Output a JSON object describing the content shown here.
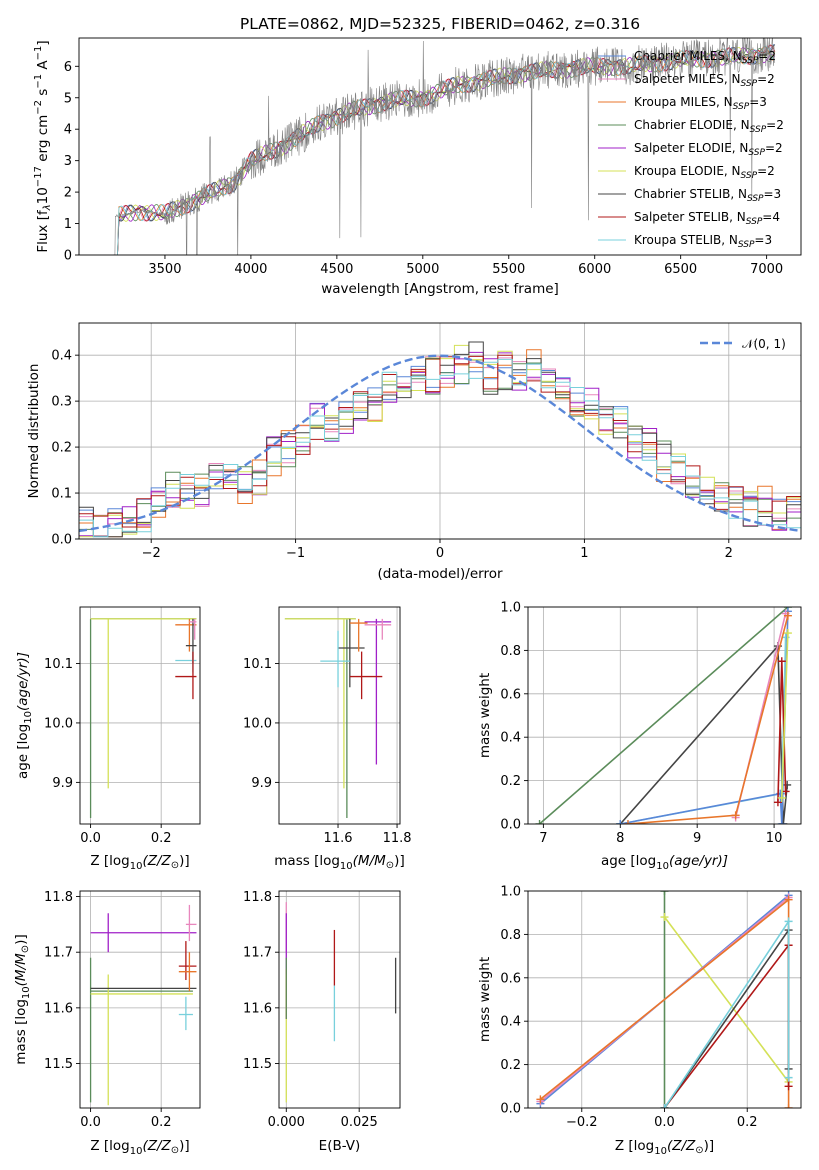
{
  "title": "PLATE=0862, MJD=52325, FIBERID=0462, z=0.316",
  "colors": {
    "chabrier_miles": "#5a87d8",
    "salpeter_miles": "#e887bd",
    "kroupa_miles": "#e8762b",
    "chabrier_elodie": "#5b8c5a",
    "salpeter_elodie": "#a020c8",
    "kroupa_elodie": "#d4e157",
    "chabrier_stelib": "#444444",
    "salpeter_stelib": "#b01818",
    "kroupa_stelib": "#78d0dc",
    "data": "#808080",
    "grid": "#b0b0b0"
  },
  "chart_data": [
    {
      "id": "spectrum",
      "type": "line",
      "xlabel": "wavelength [Angstrom, rest frame]",
      "ylabel": "Flux [f_λ 10^-17 erg cm^-2 s^-1 A^-1]",
      "ylabel_main": "Flux [f",
      "ylabel_sub": "λ",
      "ylabel_exp_a": "10",
      "ylabel_exp_b": "−17",
      "ylabel_rest_a": " erg cm",
      "ylabel_rest_b": "−2",
      "ylabel_rest_c": " s",
      "ylabel_rest_d": "−1",
      "ylabel_rest_e": " A",
      "ylabel_rest_f": "−1",
      "ylabel_close": "]",
      "xlim": [
        3000,
        7200
      ],
      "ylim": [
        0,
        6.9
      ],
      "xticks": [
        3500,
        4000,
        4500,
        5000,
        5500,
        6000,
        6500,
        7000
      ],
      "yticks": [
        0,
        1,
        2,
        3,
        4,
        5,
        6
      ],
      "grid": false,
      "legend_position": "top-right",
      "continuum": [
        [
          3200,
          1.2
        ],
        [
          3350,
          1.4
        ],
        [
          3500,
          1.3
        ],
        [
          3700,
          1.8
        ],
        [
          3900,
          2.3
        ],
        [
          4000,
          3.0
        ],
        [
          4200,
          3.5
        ],
        [
          4400,
          4.2
        ],
        [
          4600,
          4.6
        ],
        [
          4800,
          4.9
        ],
        [
          5000,
          5.0
        ],
        [
          5200,
          5.4
        ],
        [
          5400,
          5.6
        ],
        [
          5600,
          5.8
        ],
        [
          5800,
          5.9
        ],
        [
          6000,
          6.0
        ],
        [
          6200,
          6.0
        ],
        [
          6500,
          6.2
        ],
        [
          6800,
          6.3
        ],
        [
          7000,
          6.4
        ]
      ],
      "legend": [
        {
          "name_main": "Chabrier MILES, N",
          "name_sub": "SSP",
          "name_val": "=2",
          "color_key": "chabrier_miles"
        },
        {
          "name_main": "Salpeter MILES, N",
          "name_sub": "SSP",
          "name_val": "=2",
          "color_key": "salpeter_miles"
        },
        {
          "name_main": "Kroupa MILES, N",
          "name_sub": "SSP",
          "name_val": "=3",
          "color_key": "kroupa_miles"
        },
        {
          "name_main": "Chabrier ELODIE, N",
          "name_sub": "SSP",
          "name_val": "=2",
          "color_key": "chabrier_elodie"
        },
        {
          "name_main": "Salpeter ELODIE, N",
          "name_sub": "SSP",
          "name_val": "=2",
          "color_key": "salpeter_elodie"
        },
        {
          "name_main": "Kroupa ELODIE, N",
          "name_sub": "SSP",
          "name_val": "=2",
          "color_key": "kroupa_elodie"
        },
        {
          "name_main": "Chabrier STELIB, N",
          "name_sub": "SSP",
          "name_val": "=3",
          "color_key": "chabrier_stelib"
        },
        {
          "name_main": "Salpeter STELIB, N",
          "name_sub": "SSP",
          "name_val": "=4",
          "color_key": "salpeter_stelib"
        },
        {
          "name_main": "Kroupa STELIB, N",
          "name_sub": "SSP",
          "name_val": "=3",
          "color_key": "kroupa_stelib"
        }
      ]
    },
    {
      "id": "residuals",
      "type": "histogram",
      "xlabel": "(data-model)/error",
      "ylabel": "Normed distribution",
      "xlim": [
        -2.5,
        2.5
      ],
      "ylim": [
        0,
        0.47
      ],
      "xticks": [
        -2,
        -1,
        0,
        1,
        2
      ],
      "xticklabels": [
        "−2",
        "−1",
        "0",
        "1",
        "2"
      ],
      "yticks": [
        0.0,
        0.1,
        0.2,
        0.3,
        0.4
      ],
      "yticklabels": [
        "0.0",
        "0.1",
        "0.2",
        "0.3",
        "0.4"
      ],
      "grid": true,
      "bin_edges_range": [
        -2.5,
        2.5
      ],
      "bin_count": 50,
      "mean_profile": [
        0.03,
        0.03,
        0.035,
        0.04,
        0.06,
        0.09,
        0.11,
        0.1,
        0.11,
        0.13,
        0.14,
        0.12,
        0.13,
        0.18,
        0.2,
        0.22,
        0.26,
        0.25,
        0.27,
        0.29,
        0.3,
        0.32,
        0.33,
        0.34,
        0.36,
        0.37,
        0.38,
        0.39,
        0.36,
        0.37,
        0.35,
        0.37,
        0.33,
        0.31,
        0.3,
        0.3,
        0.27,
        0.25,
        0.22,
        0.2,
        0.17,
        0.15,
        0.13,
        0.12,
        0.1,
        0.09,
        0.07,
        0.07,
        0.06,
        0.05
      ],
      "gaussian_label_main": "𝒩(0, 1)",
      "gaussian_color": "#5a87d8",
      "legend_position": "top-right"
    },
    {
      "id": "age-vs-Z",
      "type": "errorbar",
      "xlabel_main": "Z [log",
      "xlabel_sub": "10",
      "xlabel_rest": "(Z/Z",
      "xlabel_sun": "⊙",
      "xlabel_close": ")]",
      "ylabel_main": "age  [log",
      "ylabel_sub": "10",
      "ylabel_rest": "(age/yr)]",
      "xlim": [
        -0.03,
        0.31
      ],
      "ylim": [
        9.83,
        10.195
      ],
      "xticks": [
        0.0,
        0.2
      ],
      "xticklabels": [
        "0.0",
        "0.2"
      ],
      "yticks": [
        9.9,
        10.0,
        10.1
      ],
      "yticklabels": [
        "9.9",
        "10.0",
        "10.1"
      ],
      "grid": true,
      "points": [
        {
          "x": 0.0,
          "y": 10.175,
          "xl": 0.0,
          "xh": 0.3,
          "yl": 9.84,
          "yh": 10.175,
          "color_key": "chabrier_elodie"
        },
        {
          "x": 0.05,
          "y": 10.175,
          "xl": 0.0,
          "xh": 0.3,
          "yl": 9.89,
          "yh": 10.175,
          "color_key": "kroupa_elodie"
        },
        {
          "x": 0.28,
          "y": 10.165,
          "xl": 0.24,
          "xh": 0.3,
          "yl": 10.12,
          "yh": 10.175,
          "color_key": "kroupa_miles"
        },
        {
          "x": 0.29,
          "y": 10.13,
          "xl": 0.27,
          "xh": 0.3,
          "yl": 10.1,
          "yh": 10.175,
          "color_key": "chabrier_stelib"
        },
        {
          "x": 0.29,
          "y": 10.105,
          "xl": 0.24,
          "xh": 0.3,
          "yl": 10.085,
          "yh": 10.12,
          "color_key": "kroupa_stelib"
        },
        {
          "x": 0.29,
          "y": 10.078,
          "xl": 0.24,
          "xh": 0.3,
          "yl": 10.04,
          "yh": 10.12,
          "color_key": "salpeter_stelib"
        },
        {
          "x": 0.295,
          "y": 10.17,
          "xl": 0.28,
          "xh": 0.3,
          "yl": 10.14,
          "yh": 10.175,
          "color_key": "salpeter_miles"
        }
      ]
    },
    {
      "id": "age-vs-mass",
      "type": "errorbar",
      "xlabel_main": "mass [log",
      "xlabel_sub": "10",
      "xlabel_rest": "(M/M",
      "xlabel_sun": "⊙",
      "xlabel_close": ")]",
      "xlim": [
        11.4,
        11.81
      ],
      "ylim": [
        9.83,
        10.195
      ],
      "xticks": [
        11.6,
        11.8
      ],
      "xticklabels": [
        "11.6",
        "11.8"
      ],
      "yticks": [
        9.9,
        10.0,
        10.1
      ],
      "yticklabels": [
        "9.9",
        "10.0",
        "10.1"
      ],
      "grid": true,
      "points": [
        {
          "x": 11.63,
          "y": 10.175,
          "xl": 11.42,
          "xh": 11.66,
          "yl": 9.84,
          "yh": 10.175,
          "color_key": "chabrier_elodie"
        },
        {
          "x": 11.62,
          "y": 10.175,
          "xl": 11.42,
          "xh": 11.66,
          "yl": 9.89,
          "yh": 10.175,
          "color_key": "kroupa_elodie"
        },
        {
          "x": 11.73,
          "y": 10.17,
          "xl": 11.69,
          "xh": 11.78,
          "yl": 9.93,
          "yh": 10.175,
          "color_key": "salpeter_elodie"
        },
        {
          "x": 11.75,
          "y": 10.165,
          "xl": 11.69,
          "xh": 11.78,
          "yl": 10.14,
          "yh": 10.175,
          "color_key": "salpeter_miles"
        },
        {
          "x": 11.64,
          "y": 10.126,
          "xl": 11.6,
          "xh": 11.69,
          "yl": 10.06,
          "yh": 10.175,
          "color_key": "chabrier_stelib"
        },
        {
          "x": 11.68,
          "y": 10.078,
          "xl": 11.64,
          "xh": 11.75,
          "yl": 10.04,
          "yh": 10.12,
          "color_key": "salpeter_stelib"
        },
        {
          "x": 11.6,
          "y": 10.104,
          "xl": 11.54,
          "xh": 11.64,
          "yl": 10.06,
          "yh": 10.155,
          "color_key": "kroupa_stelib"
        },
        {
          "x": 11.67,
          "y": 10.168,
          "xl": 11.64,
          "xh": 11.7,
          "yl": 10.12,
          "yh": 10.175,
          "color_key": "kroupa_miles"
        }
      ]
    },
    {
      "id": "weight-vs-age",
      "type": "line",
      "xlabel_main": "age  [log",
      "xlabel_sub": "10",
      "xlabel_rest": "(age/yr)]",
      "ylabel": "mass weight",
      "xlim": [
        6.8,
        10.35
      ],
      "ylim": [
        0,
        1.0
      ],
      "xticks": [
        7,
        8,
        9,
        10
      ],
      "xticklabels": [
        "7",
        "8",
        "9",
        "10"
      ],
      "yticks": [
        0.0,
        0.2,
        0.4,
        0.6,
        0.8,
        1.0
      ],
      "yticklabels": [
        "0.0",
        "0.2",
        "0.4",
        "0.6",
        "0.8",
        "1.0"
      ],
      "grid": true,
      "series": [
        {
          "color_key": "chabrier_elodie",
          "points": [
            [
              6.95,
              0.0
            ],
            [
              10.18,
              1.0
            ]
          ]
        },
        {
          "color_key": "chabrier_stelib",
          "points": [
            [
              8.0,
              0.0
            ],
            [
              10.05,
              0.82
            ],
            [
              10.12,
              0.0
            ],
            [
              10.17,
              0.18
            ]
          ]
        },
        {
          "color_key": "kroupa_stelib",
          "points": [
            [
              8.0,
              0.0
            ],
            [
              10.1,
              0.14
            ],
            [
              10.15,
              0.86
            ]
          ]
        },
        {
          "color_key": "chabrier_miles",
          "points": [
            [
              8.0,
              0.0
            ],
            [
              10.08,
              0.14
            ],
            [
              10.1,
              0.0
            ],
            [
              10.18,
              0.98
            ]
          ]
        },
        {
          "color_key": "salpeter_stelib",
          "points": [
            [
              10.05,
              0.1
            ],
            [
              10.1,
              0.75
            ],
            [
              10.15,
              0.15
            ]
          ]
        },
        {
          "color_key": "kroupa_elodie",
          "points": [
            [
              10.1,
              0.12
            ],
            [
              10.18,
              0.88
            ]
          ]
        },
        {
          "color_key": "salpeter_miles",
          "points": [
            [
              9.5,
              0.03
            ],
            [
              10.15,
              0.97
            ]
          ]
        },
        {
          "color_key": "kroupa_miles",
          "points": [
            [
              8.1,
              0.0
            ],
            [
              9.5,
              0.04
            ],
            [
              10.18,
              0.96
            ]
          ]
        }
      ]
    },
    {
      "id": "mass-vs-Z",
      "type": "errorbar",
      "xlabel_main": "Z [log",
      "xlabel_sub": "10",
      "xlabel_rest": "(Z/Z",
      "xlabel_sun": "⊙",
      "xlabel_close": ")]",
      "ylabel_main": "mass [log",
      "ylabel_sub": "10",
      "ylabel_rest": "(M/M",
      "ylabel_sun": "⊙",
      "ylabel_close": ")]",
      "xlim": [
        -0.03,
        0.31
      ],
      "ylim": [
        11.42,
        11.81
      ],
      "xticks": [
        0.0,
        0.2
      ],
      "xticklabels": [
        "0.0",
        "0.2"
      ],
      "yticks": [
        11.5,
        11.6,
        11.7,
        11.8
      ],
      "yticklabels": [
        "11.5",
        "11.6",
        "11.7",
        "11.8"
      ],
      "grid": true,
      "points": [
        {
          "x": 0.0,
          "y": 11.63,
          "xl": 0.0,
          "xh": 0.29,
          "yl": 11.43,
          "yh": 11.69,
          "color_key": "chabrier_elodie"
        },
        {
          "x": 0.05,
          "y": 11.625,
          "xl": 0.0,
          "xh": 0.29,
          "yl": 11.425,
          "yh": 11.66,
          "color_key": "kroupa_elodie"
        },
        {
          "x": 0.05,
          "y": 11.735,
          "xl": 0.0,
          "xh": 0.3,
          "yl": 11.7,
          "yh": 11.77,
          "color_key": "salpeter_elodie"
        },
        {
          "x": 0.0,
          "y": 11.635,
          "xl": 0.0,
          "xh": 0.3,
          "yl": 11.635,
          "yh": 11.635,
          "color_key": "chabrier_stelib"
        },
        {
          "x": 0.28,
          "y": 11.75,
          "xl": 0.27,
          "xh": 0.3,
          "yl": 11.72,
          "yh": 11.785,
          "color_key": "salpeter_miles"
        },
        {
          "x": 0.27,
          "y": 11.675,
          "xl": 0.25,
          "xh": 0.3,
          "yl": 11.65,
          "yh": 11.72,
          "color_key": "salpeter_stelib"
        },
        {
          "x": 0.28,
          "y": 11.665,
          "xl": 0.25,
          "xh": 0.3,
          "yl": 11.63,
          "yh": 11.7,
          "color_key": "kroupa_miles"
        },
        {
          "x": 0.27,
          "y": 11.588,
          "xl": 0.25,
          "xh": 0.29,
          "yl": 11.56,
          "yh": 11.62,
          "color_key": "kroupa_stelib"
        }
      ]
    },
    {
      "id": "mass-vs-ebv",
      "type": "errorbar",
      "xlabel": "E(B-V)",
      "xlim": [
        -0.0025,
        0.039
      ],
      "ylim": [
        11.42,
        11.81
      ],
      "xticks": [
        0.0,
        0.025
      ],
      "xticklabels": [
        "0.000",
        "0.025"
      ],
      "yticks": [
        11.5,
        11.6,
        11.7,
        11.8
      ],
      "yticklabels": [
        "11.5",
        "11.6",
        "11.7",
        "11.8"
      ],
      "grid": true,
      "points": [
        {
          "x": 0.0,
          "y": 11.74,
          "yl": 11.7,
          "yh": 11.79,
          "color_key": "salpeter_miles"
        },
        {
          "x": 0.0,
          "y": 11.69,
          "yl": 11.66,
          "yh": 11.77,
          "color_key": "salpeter_elodie"
        },
        {
          "x": 0.0,
          "y": 11.6,
          "yl": 11.43,
          "yh": 11.66,
          "color_key": "kroupa_elodie"
        },
        {
          "x": 0.0,
          "y": 11.62,
          "yl": 11.58,
          "yh": 11.67,
          "color_key": "kroupa_miles"
        },
        {
          "x": 0.0,
          "y": 11.62,
          "yl": 11.58,
          "yh": 11.69,
          "color_key": "chabrier_elodie"
        },
        {
          "x": 0.0165,
          "y": 11.69,
          "yl": 11.64,
          "yh": 11.74,
          "color_key": "salpeter_stelib"
        },
        {
          "x": 0.0165,
          "y": 11.59,
          "yl": 11.54,
          "yh": 11.64,
          "color_key": "kroupa_stelib"
        },
        {
          "x": 0.0375,
          "y": 11.64,
          "yl": 11.59,
          "yh": 11.69,
          "color_key": "chabrier_stelib"
        }
      ]
    },
    {
      "id": "weight-vs-Z",
      "type": "line",
      "xlabel_main": "Z [log",
      "xlabel_sub": "10",
      "xlabel_rest": "(Z/Z",
      "xlabel_sun": "⊙",
      "xlabel_close": ")]",
      "ylabel": "mass weight",
      "xlim": [
        -0.33,
        0.33
      ],
      "ylim": [
        0,
        1.0
      ],
      "xticks": [
        -0.2,
        0.0,
        0.2
      ],
      "xticklabels": [
        "−0.2",
        "0.0",
        "0.2"
      ],
      "yticks": [
        0.0,
        0.2,
        0.4,
        0.6,
        0.8,
        1.0
      ],
      "yticklabels": [
        "0.0",
        "0.2",
        "0.4",
        "0.6",
        "0.8",
        "1.0"
      ],
      "grid": true,
      "series": [
        {
          "color_key": "chabrier_elodie",
          "points": [
            [
              0.0,
              0.0
            ],
            [
              0.0,
              1.0
            ]
          ]
        },
        {
          "color_key": "kroupa_elodie",
          "points": [
            [
              0.0,
              0.88
            ],
            [
              0.3,
              0.12
            ]
          ]
        },
        {
          "color_key": "chabrier_miles",
          "points": [
            [
              -0.3,
              0.02
            ],
            [
              0.3,
              0.98
            ]
          ]
        },
        {
          "color_key": "salpeter_miles",
          "points": [
            [
              -0.3,
              0.03
            ],
            [
              0.3,
              0.97
            ]
          ]
        },
        {
          "color_key": "kroupa_miles",
          "points": [
            [
              -0.3,
              0.04
            ],
            [
              0.3,
              0.96
            ],
            [
              0.3,
              0.0
            ]
          ]
        },
        {
          "color_key": "salpeter_stelib",
          "points": [
            [
              0.0,
              0.0
            ],
            [
              0.3,
              0.75
            ],
            [
              0.3,
              0.1
            ]
          ]
        },
        {
          "color_key": "chabrier_stelib",
          "points": [
            [
              0.0,
              0.0
            ],
            [
              0.3,
              0.82
            ],
            [
              0.3,
              0.18
            ]
          ]
        },
        {
          "color_key": "kroupa_stelib",
          "points": [
            [
              0.0,
              0.0
            ],
            [
              0.3,
              0.86
            ],
            [
              0.3,
              0.14
            ]
          ]
        }
      ]
    }
  ]
}
